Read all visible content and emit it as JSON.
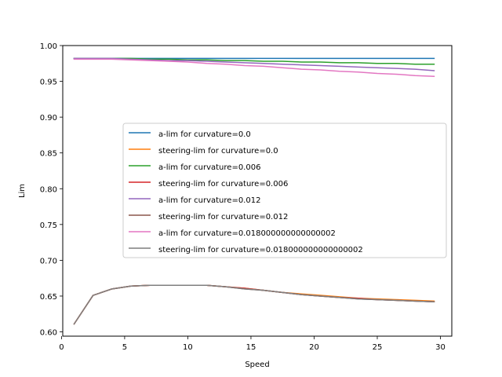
{
  "chart_data": {
    "type": "line",
    "title": "",
    "xlabel": "Speed",
    "ylabel": "Lim",
    "xlim": [
      0.1,
      30.9
    ],
    "ylim": [
      0.594,
      1.0
    ],
    "xticks": [
      0,
      5,
      10,
      15,
      20,
      25,
      30
    ],
    "yticks": [
      0.6,
      0.65,
      0.7,
      0.75,
      0.8,
      0.85,
      0.9,
      0.95,
      1.0
    ],
    "xtick_labels": [
      "0",
      "5",
      "10",
      "15",
      "20",
      "25",
      "30"
    ],
    "ytick_labels": [
      "0.60",
      "0.65",
      "0.70",
      "0.75",
      "0.80",
      "0.85",
      "0.90",
      "0.95",
      "1.00"
    ],
    "grid": false,
    "legend_position": "center-right",
    "x": [
      1.0,
      2.5,
      4.0,
      5.5,
      7.0,
      8.5,
      10.0,
      11.5,
      13.0,
      14.5,
      16.0,
      17.5,
      19.0,
      20.5,
      22.0,
      23.5,
      25.0,
      26.5,
      28.0,
      29.5
    ],
    "series": [
      {
        "name": "a-lim for curvature=0.0",
        "color": "#1f77b4",
        "values": [
          0.982,
          0.982,
          0.982,
          0.982,
          0.982,
          0.982,
          0.982,
          0.982,
          0.982,
          0.982,
          0.982,
          0.982,
          0.982,
          0.982,
          0.982,
          0.982,
          0.982,
          0.982,
          0.982,
          0.982
        ]
      },
      {
        "name": "steering-lim for curvature=0.0",
        "color": "#ff7f0e",
        "values": [
          0.611,
          0.651,
          0.66,
          0.664,
          0.665,
          0.665,
          0.665,
          0.665,
          0.663,
          0.661,
          0.658,
          0.655,
          0.653,
          0.651,
          0.649,
          0.647,
          0.646,
          0.645,
          0.644,
          0.643
        ]
      },
      {
        "name": "a-lim for curvature=0.006",
        "color": "#2ca02c",
        "values": [
          0.982,
          0.982,
          0.982,
          0.982,
          0.981,
          0.981,
          0.98,
          0.98,
          0.979,
          0.979,
          0.978,
          0.978,
          0.977,
          0.977,
          0.976,
          0.976,
          0.975,
          0.975,
          0.974,
          0.974
        ]
      },
      {
        "name": "steering-lim for curvature=0.006",
        "color": "#d62728",
        "values": [
          0.611,
          0.651,
          0.66,
          0.664,
          0.665,
          0.665,
          0.665,
          0.665,
          0.663,
          0.661,
          0.658,
          0.655,
          0.652,
          0.65,
          0.648,
          0.647,
          0.645,
          0.644,
          0.643,
          0.642
        ]
      },
      {
        "name": "a-lim for curvature=0.012",
        "color": "#9467bd",
        "values": [
          0.982,
          0.982,
          0.982,
          0.981,
          0.98,
          0.979,
          0.979,
          0.978,
          0.977,
          0.976,
          0.975,
          0.974,
          0.973,
          0.972,
          0.971,
          0.97,
          0.969,
          0.968,
          0.967,
          0.965
        ]
      },
      {
        "name": "steering-lim for curvature=0.012",
        "color": "#8c564b",
        "values": [
          0.611,
          0.651,
          0.66,
          0.664,
          0.665,
          0.665,
          0.665,
          0.665,
          0.663,
          0.66,
          0.658,
          0.655,
          0.652,
          0.65,
          0.648,
          0.646,
          0.645,
          0.644,
          0.643,
          0.642
        ]
      },
      {
        "name": "a-lim for curvature=0.018000000000000002",
        "color": "#e377c2",
        "values": [
          0.981,
          0.981,
          0.981,
          0.98,
          0.979,
          0.978,
          0.977,
          0.975,
          0.974,
          0.972,
          0.971,
          0.969,
          0.967,
          0.966,
          0.964,
          0.963,
          0.961,
          0.96,
          0.958,
          0.957
        ]
      },
      {
        "name": "steering-lim for curvature=0.018000000000000002",
        "color": "#7f7f7f",
        "values": [
          0.611,
          0.651,
          0.66,
          0.664,
          0.665,
          0.665,
          0.665,
          0.665,
          0.663,
          0.66,
          0.658,
          0.655,
          0.652,
          0.65,
          0.648,
          0.646,
          0.645,
          0.644,
          0.643,
          0.642
        ]
      }
    ]
  }
}
